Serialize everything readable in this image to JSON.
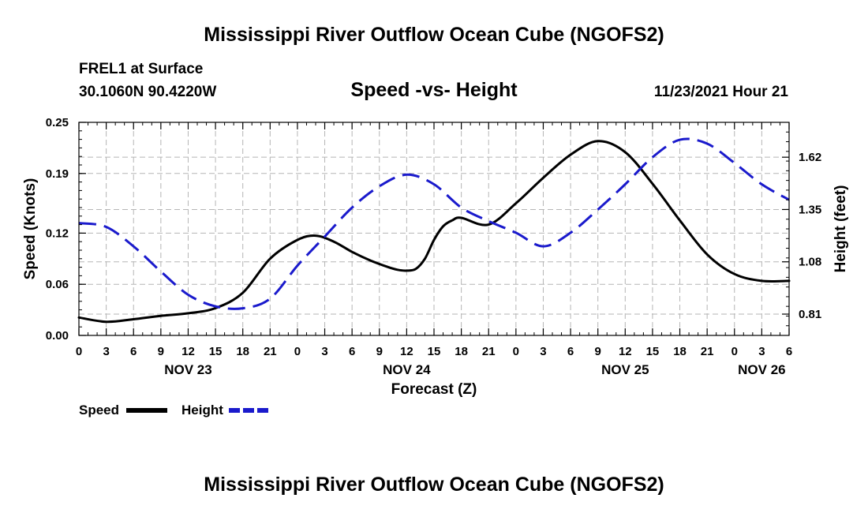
{
  "header": {
    "title": "Mississippi River Outflow Ocean Cube (NGOFS2)",
    "station": "FREL1 at Surface",
    "coords": "30.1060N  90.4220W",
    "subtitle": "Speed -vs- Height",
    "datetime": "11/23/2021 Hour 21"
  },
  "footer": {
    "title": "Mississippi River Outflow Ocean Cube (NGOFS2)"
  },
  "chart_data": {
    "type": "line",
    "title": "Speed -vs- Height",
    "xlabel": "Forecast (Z)",
    "ylabel": "Speed (Knots)",
    "y2label": "Height (feet)",
    "x_unit": "hours from NOV 23 00Z",
    "xlim": [
      0,
      78
    ],
    "ylim": [
      0,
      0.25
    ],
    "y2lim": [
      0.7,
      1.8
    ],
    "x_ticks": [
      0,
      3,
      6,
      9,
      12,
      15,
      18,
      21,
      24,
      27,
      30,
      33,
      36,
      39,
      42,
      45,
      48,
      51,
      54,
      57,
      60,
      63,
      66,
      69,
      72,
      75,
      78
    ],
    "x_tick_labels": [
      "0",
      "3",
      "6",
      "9",
      "12",
      "15",
      "18",
      "21",
      "0",
      "3",
      "6",
      "9",
      "12",
      "15",
      "18",
      "21",
      "0",
      "3",
      "6",
      "9",
      "12",
      "15",
      "18",
      "21",
      "0",
      "3",
      "6"
    ],
    "day_labels": [
      {
        "x": 12,
        "label": "NOV 23"
      },
      {
        "x": 36,
        "label": "NOV 24"
      },
      {
        "x": 60,
        "label": "NOV 25"
      },
      {
        "x": 75,
        "label": "NOV 26"
      }
    ],
    "y_ticks": [
      0.0,
      0.06,
      0.12,
      0.19,
      0.25
    ],
    "y_tick_labels": [
      "0.00",
      "0.06",
      "0.12",
      "0.19",
      "0.25"
    ],
    "y2_ticks": [
      0.81,
      1.08,
      1.35,
      1.62
    ],
    "y2_tick_labels": [
      "0.81",
      "1.08",
      "1.35",
      "1.62"
    ],
    "grid": true,
    "legend": "bottom-left",
    "series": [
      {
        "name": "Speed",
        "axis": "left",
        "color": "#000000",
        "style": "solid",
        "x": [
          0,
          3,
          6,
          9,
          12,
          15,
          18,
          21,
          24,
          26,
          28,
          30,
          32,
          34,
          35,
          36,
          37,
          38,
          39,
          40,
          41,
          42,
          45,
          48,
          51,
          54,
          57,
          60,
          63,
          66,
          69,
          72,
          75,
          78
        ],
        "y": [
          0.021,
          0.016,
          0.019,
          0.023,
          0.026,
          0.032,
          0.05,
          0.09,
          0.112,
          0.117,
          0.11,
          0.098,
          0.088,
          0.08,
          0.077,
          0.076,
          0.078,
          0.09,
          0.112,
          0.128,
          0.135,
          0.138,
          0.13,
          0.155,
          0.185,
          0.212,
          0.228,
          0.215,
          0.178,
          0.135,
          0.095,
          0.072,
          0.064,
          0.064
        ]
      },
      {
        "name": "Height",
        "axis": "right",
        "color": "#1a1acc",
        "style": "dashed",
        "x": [
          0,
          3,
          6,
          9,
          12,
          15,
          18,
          21,
          24,
          27,
          30,
          33,
          36,
          39,
          42,
          45,
          48,
          51,
          54,
          57,
          60,
          63,
          66,
          69,
          72,
          75,
          78
        ],
        "y": [
          1.28,
          1.26,
          1.16,
          1.03,
          0.91,
          0.85,
          0.84,
          0.89,
          1.06,
          1.21,
          1.36,
          1.47,
          1.53,
          1.48,
          1.36,
          1.29,
          1.23,
          1.16,
          1.23,
          1.35,
          1.48,
          1.62,
          1.71,
          1.69,
          1.59,
          1.48,
          1.4
        ]
      }
    ],
    "legend_entries": [
      {
        "label": "Speed",
        "color": "#000000",
        "style": "solid"
      },
      {
        "label": "Height",
        "color": "#1a1acc",
        "style": "dashed"
      }
    ]
  }
}
